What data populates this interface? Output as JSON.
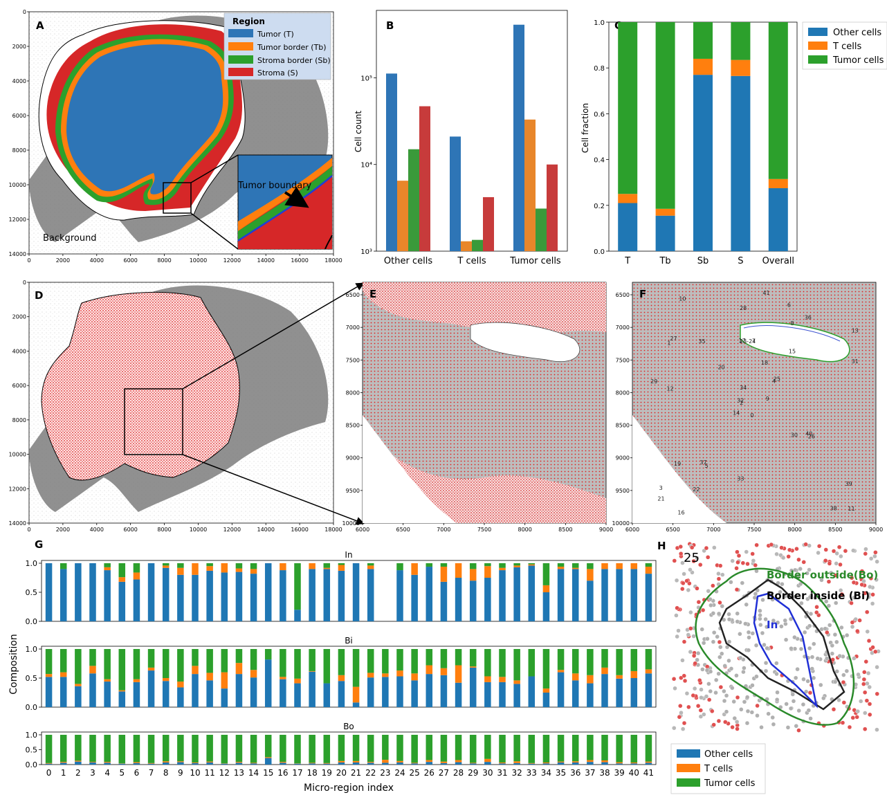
{
  "colors": {
    "blue": "#2e75b6",
    "orange": "#ff7f0e",
    "green": "#2ca02c",
    "red": "#d62728",
    "grey": "#8c8c8c",
    "sea": "#3a7bd5"
  },
  "panels": {
    "A": {
      "label": "A",
      "legend_title": "Region",
      "legend": [
        "Tumor (T)",
        "Tumor border (Tb)",
        "Stroma border (Sb)",
        "Stroma (S)"
      ],
      "background_label": "Background",
      "inset_label": "Tumor boundary",
      "x_ticks": [
        "0",
        "2000",
        "4000",
        "6000",
        "8000",
        "10000",
        "12000",
        "14000",
        "16000",
        "18000"
      ],
      "y_ticks": [
        "0",
        "2000",
        "4000",
        "6000",
        "8000",
        "10000",
        "12000",
        "14000"
      ]
    },
    "D": {
      "label": "D",
      "x_ticks": [
        "0",
        "2000",
        "4000",
        "6000",
        "8000",
        "10000",
        "12000",
        "14000",
        "16000",
        "18000"
      ],
      "y_ticks": [
        "0",
        "2000",
        "4000",
        "6000",
        "8000",
        "10000",
        "12000",
        "14000"
      ]
    },
    "E": {
      "label": "E",
      "x_ticks": [
        "6000",
        "6500",
        "7000",
        "7500",
        "8000",
        "8500",
        "9000"
      ],
      "y_ticks": [
        "6500",
        "7000",
        "7500",
        "8000",
        "8500",
        "9000",
        "9500",
        "10000"
      ]
    },
    "F": {
      "label": "F",
      "x_ticks": [
        "6000",
        "6500",
        "7000",
        "7500",
        "8000",
        "8500",
        "9000"
      ],
      "y_ticks": [
        "6500",
        "7000",
        "7500",
        "8000",
        "8500",
        "9000",
        "9500",
        "10000"
      ],
      "region_ids": [
        "0",
        "1",
        "2",
        "3",
        "4",
        "5",
        "6",
        "7",
        "8",
        "9",
        "10",
        "11",
        "12",
        "13",
        "14",
        "15",
        "16",
        "17",
        "18",
        "19",
        "20",
        "21",
        "22",
        "23-24",
        "25",
        "26",
        "27",
        "28",
        "29",
        "30",
        "31",
        "32",
        "33",
        "34",
        "35",
        "36",
        "37",
        "38",
        "39",
        "40",
        "41"
      ]
    },
    "H": {
      "label": "H",
      "region_id": "25",
      "border_outside": "Border outside(Bo)",
      "border_inside": "Border inside (Bi)",
      "inner": "In",
      "legend": [
        "Other cells",
        "T cells",
        "Tumor cells"
      ]
    }
  },
  "chart_data": [
    {
      "panel": "B",
      "type": "bar",
      "scale": "log",
      "ylabel": "Cell count",
      "ylim": [
        1000,
        600000
      ],
      "y_ticks": [
        "10³",
        "10⁴",
        "10⁵"
      ],
      "categories": [
        "Other cells",
        "T cells",
        "Tumor cells"
      ],
      "series": [
        {
          "values": [
            112000,
            21000,
            410000
          ],
          "color": "#2e75b6"
        },
        {
          "values": [
            6500,
            1300,
            33000
          ],
          "color": "#e8862a"
        },
        {
          "values": [
            15000,
            1350,
            3100
          ],
          "color": "#3a9a3a"
        },
        {
          "values": [
            47000,
            4200,
            10000
          ],
          "color": "#c73b3b"
        }
      ]
    },
    {
      "panel": "C",
      "type": "bar",
      "stacked": true,
      "ylabel": "Cell fraction",
      "ylim": [
        0,
        1.0
      ],
      "y_ticks": [
        "0.0",
        "0.2",
        "0.4",
        "0.6",
        "0.8",
        "1.0"
      ],
      "categories": [
        "T",
        "Tb",
        "Sb",
        "S",
        "Overall"
      ],
      "series": [
        {
          "name": "Other cells",
          "values": [
            0.21,
            0.155,
            0.77,
            0.765,
            0.275
          ],
          "color": "#1f77b4"
        },
        {
          "name": "T cells",
          "values": [
            0.04,
            0.03,
            0.07,
            0.07,
            0.04
          ],
          "color": "#ff7f0e"
        },
        {
          "name": "Tumor cells",
          "values": [
            0.75,
            0.815,
            0.16,
            0.165,
            0.685
          ],
          "color": "#2ca02c"
        }
      ]
    },
    {
      "panel": "G",
      "type": "bar",
      "stacked": true,
      "ylabel": "Composition",
      "xlabel": "Micro-region index",
      "categories": [
        "0",
        "1",
        "2",
        "3",
        "4",
        "5",
        "6",
        "7",
        "8",
        "9",
        "10",
        "11",
        "12",
        "13",
        "14",
        "15",
        "16",
        "17",
        "18",
        "19",
        "20",
        "21",
        "22",
        "23",
        "24",
        "25",
        "26",
        "27",
        "28",
        "29",
        "30",
        "31",
        "32",
        "33",
        "34",
        "35",
        "36",
        "37",
        "38",
        "39",
        "40",
        "41"
      ],
      "y_ticks": [
        "0.0",
        "0.5",
        "1.0"
      ],
      "subplots": [
        {
          "title": "In",
          "other": [
            1.0,
            0.9,
            1.0,
            1.0,
            0.88,
            0.68,
            0.72,
            1.0,
            0.92,
            0.8,
            0.8,
            0.87,
            0.84,
            0.85,
            0.82,
            1.0,
            0.88,
            0.2,
            0.9,
            0.9,
            0.87,
            1.0,
            0.9,
            0.0,
            0.88,
            0.8,
            0.94,
            0.68,
            0.75,
            0.7,
            0.75,
            0.88,
            0.93,
            0.96,
            0.5,
            0.9,
            0.9,
            0.7,
            0.9,
            0.9,
            0.9,
            0.82
          ],
          "t": [
            0.0,
            0.0,
            0.0,
            0.0,
            0.05,
            0.08,
            0.12,
            0.0,
            0.04,
            0.12,
            0.2,
            0.08,
            0.16,
            0.06,
            0.08,
            0.0,
            0.12,
            0.0,
            0.1,
            0.02,
            0.1,
            0.0,
            0.06,
            0.0,
            0.0,
            0.2,
            0.0,
            0.26,
            0.25,
            0.2,
            0.2,
            0.04,
            0.03,
            0.02,
            0.12,
            0.04,
            0.02,
            0.2,
            0.1,
            0.1,
            0.1,
            0.12
          ],
          "tumor": [
            0.0,
            0.1,
            0.0,
            0.0,
            0.07,
            0.24,
            0.16,
            0.0,
            0.04,
            0.08,
            0.0,
            0.05,
            0.0,
            0.09,
            0.1,
            0.0,
            0.0,
            0.8,
            0.0,
            0.08,
            0.03,
            0.0,
            0.04,
            0.0,
            0.12,
            0.0,
            0.06,
            0.06,
            0.0,
            0.1,
            0.05,
            0.08,
            0.04,
            0.02,
            0.38,
            0.06,
            0.08,
            0.1,
            0.0,
            0.0,
            0.0,
            0.06
          ]
        },
        {
          "title": "Bi",
          "other": [
            0.52,
            0.52,
            0.36,
            0.58,
            0.44,
            0.27,
            0.43,
            0.63,
            0.45,
            0.34,
            0.57,
            0.46,
            0.32,
            0.57,
            0.51,
            0.82,
            0.48,
            0.41,
            0.61,
            0.41,
            0.45,
            0.08,
            0.51,
            0.52,
            0.53,
            0.46,
            0.57,
            0.55,
            0.42,
            0.68,
            0.43,
            0.43,
            0.4,
            0.53,
            0.25,
            0.6,
            0.46,
            0.41,
            0.57,
            0.49,
            0.5,
            0.58
          ],
          "t": [
            0.05,
            0.08,
            0.04,
            0.13,
            0.04,
            0.02,
            0.05,
            0.05,
            0.05,
            0.1,
            0.14,
            0.13,
            0.28,
            0.19,
            0.13,
            0.0,
            0.04,
            0.08,
            0.01,
            0.0,
            0.1,
            0.27,
            0.08,
            0.06,
            0.1,
            0.12,
            0.15,
            0.12,
            0.3,
            0.02,
            0.1,
            0.09,
            0.06,
            0.0,
            0.07,
            0.04,
            0.12,
            0.14,
            0.11,
            0.06,
            0.12,
            0.07
          ],
          "tumor": [
            0.43,
            0.4,
            0.6,
            0.29,
            0.52,
            0.71,
            0.52,
            0.32,
            0.5,
            0.56,
            0.29,
            0.41,
            0.4,
            0.24,
            0.36,
            0.18,
            0.48,
            0.51,
            0.38,
            0.59,
            0.45,
            0.65,
            0.41,
            0.42,
            0.37,
            0.42,
            0.28,
            0.33,
            0.28,
            0.3,
            0.47,
            0.48,
            0.54,
            0.47,
            0.68,
            0.36,
            0.42,
            0.45,
            0.32,
            0.45,
            0.38,
            0.35
          ]
        },
        {
          "title": "Bo",
          "other": [
            0.03,
            0.06,
            0.1,
            0.07,
            0.06,
            0.03,
            0.05,
            0.03,
            0.07,
            0.08,
            0.05,
            0.07,
            0.03,
            0.06,
            0.04,
            0.22,
            0.06,
            0.03,
            0.04,
            0.03,
            0.07,
            0.07,
            0.06,
            0.06,
            0.07,
            0.04,
            0.09,
            0.05,
            0.08,
            0.04,
            0.09,
            0.04,
            0.05,
            0.03,
            0.04,
            0.07,
            0.07,
            0.09,
            0.08,
            0.04,
            0.04,
            0.06
          ],
          "t": [
            0.02,
            0.03,
            0.03,
            0.02,
            0.03,
            0.01,
            0.03,
            0.02,
            0.04,
            0.03,
            0.02,
            0.03,
            0.01,
            0.03,
            0.02,
            0.03,
            0.03,
            0.01,
            0.02,
            0.02,
            0.05,
            0.05,
            0.03,
            0.1,
            0.05,
            0.02,
            0.06,
            0.05,
            0.07,
            0.02,
            0.1,
            0.03,
            0.06,
            0.02,
            0.03,
            0.03,
            0.04,
            0.06,
            0.06,
            0.04,
            0.03,
            0.04
          ],
          "tumor": [
            0.95,
            0.91,
            0.87,
            0.91,
            0.91,
            0.96,
            0.92,
            0.95,
            0.89,
            0.89,
            0.93,
            0.9,
            0.96,
            0.91,
            0.94,
            0.75,
            0.91,
            0.96,
            0.94,
            0.95,
            0.88,
            0.88,
            0.91,
            0.84,
            0.88,
            0.94,
            0.85,
            0.9,
            0.85,
            0.94,
            0.81,
            0.93,
            0.89,
            0.95,
            0.93,
            0.9,
            0.89,
            0.85,
            0.86,
            0.92,
            0.93,
            0.9
          ]
        }
      ]
    }
  ]
}
